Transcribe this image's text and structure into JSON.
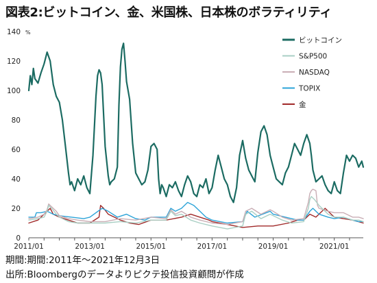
{
  "title": "図表2:ビットコイン、金、米国株、日本株のボラティリティ",
  "footer": {
    "period": "期間:期間:2011年～2021年12月3日",
    "source": "出所:Bloombergのデータよりピクテ投信投資顧問が作成"
  },
  "chart_data": {
    "type": "line",
    "title": "図表2:ビットコイン、金、米国株、日本株のボラティリティ",
    "y_unit": "%",
    "ylim": [
      0,
      140
    ],
    "y_ticks": [
      0,
      20,
      40,
      60,
      80,
      100,
      120,
      140
    ],
    "xlim": [
      2011.0,
      2021.95
    ],
    "x_tick_labels": [
      "2011/01",
      "2013/01",
      "2015/01",
      "2017/01",
      "2019/01",
      "2021/01"
    ],
    "x_tick_values": [
      2011.0,
      2013.0,
      2015.0,
      2017.0,
      2019.0,
      2021.0
    ],
    "grid": false,
    "legend_position": "top-right",
    "series": [
      {
        "name": "ビットコイン",
        "color": "#1b6b62",
        "width": 2.2,
        "x": [
          2011.0,
          2011.05,
          2011.1,
          2011.15,
          2011.2,
          2011.3,
          2011.4,
          2011.5,
          2011.6,
          2011.7,
          2011.8,
          2011.9,
          2012.0,
          2012.1,
          2012.2,
          2012.3,
          2012.35,
          2012.4,
          2012.5,
          2012.6,
          2012.7,
          2012.8,
          2012.9,
          2013.0,
          2013.1,
          2013.2,
          2013.25,
          2013.3,
          2013.35,
          2013.4,
          2013.5,
          2013.6,
          2013.65,
          2013.7,
          2013.8,
          2013.9,
          2013.95,
          2014.0,
          2014.05,
          2014.1,
          2014.15,
          2014.2,
          2014.3,
          2014.4,
          2014.5,
          2014.6,
          2014.7,
          2014.8,
          2014.9,
          2015.0,
          2015.1,
          2015.2,
          2015.25,
          2015.3,
          2015.35,
          2015.4,
          2015.5,
          2015.6,
          2015.7,
          2015.8,
          2015.9,
          2016.0,
          2016.1,
          2016.2,
          2016.3,
          2016.4,
          2016.5,
          2016.6,
          2016.7,
          2016.8,
          2016.9,
          2017.0,
          2017.1,
          2017.2,
          2017.3,
          2017.4,
          2017.5,
          2017.6,
          2017.7,
          2017.8,
          2017.9,
          2018.0,
          2018.1,
          2018.2,
          2018.3,
          2018.4,
          2018.5,
          2018.6,
          2018.7,
          2018.8,
          2018.9,
          2019.0,
          2019.1,
          2019.2,
          2019.3,
          2019.4,
          2019.5,
          2019.6,
          2019.7,
          2019.8,
          2019.9,
          2020.0,
          2020.1,
          2020.2,
          2020.25,
          2020.3,
          2020.4,
          2020.5,
          2020.6,
          2020.7,
          2020.8,
          2020.9,
          2021.0,
          2021.1,
          2021.2,
          2021.3,
          2021.4,
          2021.5,
          2021.6,
          2021.7,
          2021.8,
          2021.9,
          2021.95
        ],
        "y": [
          100,
          110,
          104,
          115,
          108,
          105,
          112,
          118,
          126,
          120,
          104,
          96,
          92,
          80,
          62,
          44,
          36,
          38,
          32,
          40,
          36,
          42,
          34,
          30,
          56,
          96,
          110,
          114,
          112,
          104,
          62,
          42,
          36,
          38,
          40,
          48,
          90,
          116,
          128,
          132,
          120,
          106,
          94,
          64,
          44,
          40,
          36,
          38,
          46,
          62,
          64,
          60,
          40,
          30,
          36,
          34,
          28,
          36,
          34,
          38,
          32,
          28,
          36,
          42,
          38,
          30,
          28,
          36,
          34,
          40,
          30,
          34,
          46,
          56,
          48,
          40,
          36,
          28,
          24,
          34,
          56,
          66,
          54,
          46,
          42,
          38,
          58,
          72,
          76,
          70,
          56,
          48,
          40,
          38,
          36,
          44,
          48,
          56,
          64,
          60,
          56,
          64,
          70,
          64,
          56,
          46,
          38,
          40,
          42,
          36,
          32,
          30,
          38,
          32,
          30,
          44,
          56,
          52,
          56,
          54,
          48,
          52,
          48
        ]
      },
      {
        "name": "S&P500",
        "color": "#a9cfc4",
        "width": 1.4,
        "x": [
          2011.0,
          2011.3,
          2011.5,
          2011.6,
          2011.65,
          2011.75,
          2011.9,
          2012.0,
          2012.3,
          2012.6,
          2013.0,
          2013.5,
          2014.0,
          2014.5,
          2015.0,
          2015.5,
          2015.65,
          2015.8,
          2016.0,
          2016.3,
          2016.6,
          2017.0,
          2017.5,
          2018.0,
          2018.1,
          2018.3,
          2018.6,
          2018.9,
          2019.0,
          2019.3,
          2019.6,
          2020.0,
          2020.15,
          2020.2,
          2020.25,
          2020.35,
          2020.5,
          2020.8,
          2021.0,
          2021.3,
          2021.6,
          2021.8,
          2021.95
        ],
        "y": [
          12,
          13,
          14,
          18,
          22,
          20,
          16,
          14,
          11,
          10,
          10,
          10,
          11,
          10,
          12,
          12,
          18,
          15,
          16,
          12,
          10,
          8,
          6,
          8,
          16,
          18,
          13,
          16,
          15,
          12,
          10,
          11,
          20,
          26,
          28,
          26,
          22,
          16,
          14,
          14,
          12,
          12,
          11
        ]
      },
      {
        "name": "NASDAQ",
        "color": "#c9aeb5",
        "width": 1.4,
        "x": [
          2011.0,
          2011.3,
          2011.5,
          2011.6,
          2011.65,
          2011.75,
          2011.9,
          2012.0,
          2012.3,
          2012.6,
          2013.0,
          2013.5,
          2014.0,
          2014.5,
          2015.0,
          2015.5,
          2015.65,
          2015.8,
          2016.0,
          2016.3,
          2016.6,
          2017.0,
          2017.5,
          2018.0,
          2018.1,
          2018.3,
          2018.6,
          2018.9,
          2019.0,
          2019.3,
          2019.6,
          2020.0,
          2020.15,
          2020.2,
          2020.25,
          2020.3,
          2020.4,
          2020.45,
          2020.5,
          2020.8,
          2021.0,
          2021.3,
          2021.6,
          2021.8,
          2021.95
        ],
        "y": [
          13,
          14,
          16,
          19,
          23,
          21,
          18,
          15,
          13,
          12,
          11,
          11,
          13,
          12,
          14,
          13,
          19,
          16,
          18,
          14,
          12,
          10,
          9,
          11,
          18,
          20,
          16,
          19,
          18,
          14,
          12,
          13,
          24,
          30,
          32,
          33,
          32,
          22,
          20,
          18,
          17,
          17,
          14,
          14,
          13
        ]
      },
      {
        "name": "TOPIX",
        "color": "#2ba3d8",
        "width": 1.4,
        "x": [
          2011.0,
          2011.2,
          2011.25,
          2011.4,
          2011.6,
          2011.8,
          2012.0,
          2012.4,
          2012.8,
          2013.0,
          2013.2,
          2013.4,
          2013.6,
          2013.9,
          2014.2,
          2014.5,
          2014.8,
          2015.0,
          2015.5,
          2015.65,
          2015.8,
          2016.0,
          2016.2,
          2016.4,
          2016.6,
          2016.8,
          2017.0,
          2017.5,
          2018.0,
          2018.15,
          2018.4,
          2018.9,
          2019.0,
          2019.4,
          2019.8,
          2020.0,
          2020.2,
          2020.3,
          2020.5,
          2020.8,
          2021.0,
          2021.3,
          2021.6,
          2021.8,
          2021.95
        ],
        "y": [
          14,
          14,
          17,
          17,
          18,
          16,
          15,
          14,
          13,
          14,
          17,
          20,
          18,
          14,
          16,
          13,
          12,
          14,
          14,
          20,
          18,
          20,
          24,
          22,
          18,
          14,
          12,
          10,
          11,
          18,
          14,
          18,
          16,
          14,
          12,
          12,
          18,
          20,
          16,
          14,
          13,
          14,
          12,
          11,
          11
        ]
      },
      {
        "name": "金",
        "color": "#a02828",
        "width": 1.4,
        "x": [
          2011.0,
          2011.3,
          2011.6,
          2011.7,
          2011.8,
          2012.0,
          2012.3,
          2012.6,
          2013.0,
          2013.3,
          2013.35,
          2013.45,
          2013.6,
          2013.8,
          2014.0,
          2014.3,
          2014.6,
          2015.0,
          2015.5,
          2016.0,
          2016.3,
          2016.6,
          2016.9,
          2017.0,
          2017.5,
          2018.0,
          2018.5,
          2019.0,
          2019.5,
          2019.8,
          2020.0,
          2020.2,
          2020.4,
          2020.6,
          2020.7,
          2020.9,
          2021.0,
          2021.3,
          2021.6,
          2021.95
        ],
        "y": [
          10,
          12,
          18,
          20,
          16,
          14,
          12,
          10,
          10,
          14,
          22,
          20,
          16,
          14,
          12,
          10,
          9,
          12,
          12,
          14,
          16,
          14,
          12,
          11,
          9,
          7,
          8,
          8,
          10,
          12,
          12,
          16,
          14,
          18,
          20,
          16,
          14,
          13,
          12,
          10
        ]
      }
    ]
  }
}
